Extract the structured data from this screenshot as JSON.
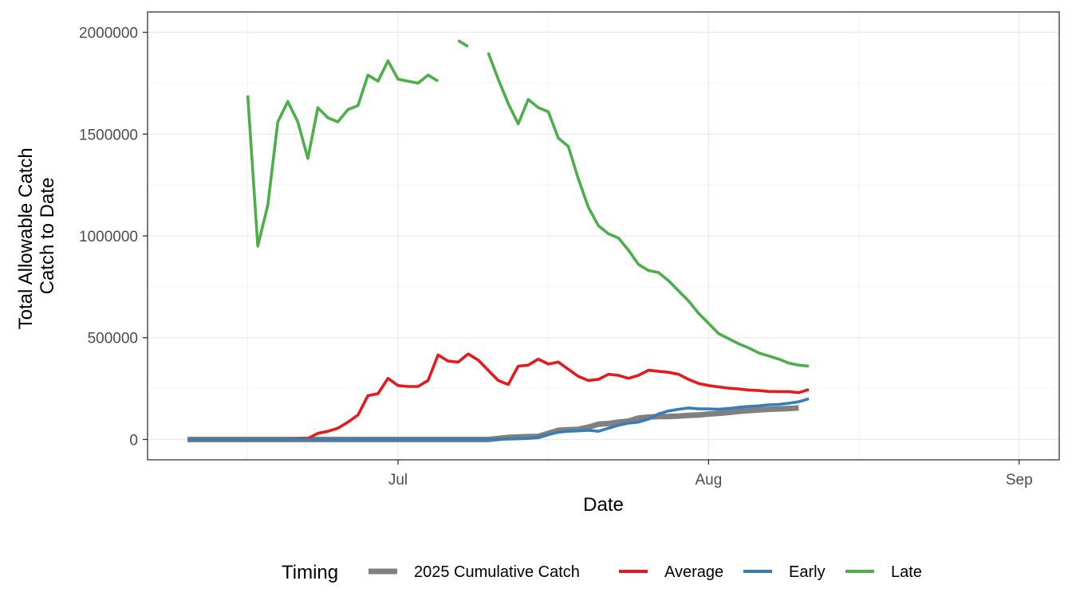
{
  "chart_data": {
    "type": "line",
    "xlabel": "Date",
    "ylabel_lines": [
      "Total Allowable Catch",
      "Catch to Date"
    ],
    "x_domain": [
      "2025-06-06",
      "2025-09-05"
    ],
    "ylim": [
      -100000,
      2100000
    ],
    "y_ticks": [
      {
        "value": 0,
        "label": "0"
      },
      {
        "value": 500000,
        "label": "500000"
      },
      {
        "value": 1000000,
        "label": "1000000"
      },
      {
        "value": 1500000,
        "label": "1500000"
      },
      {
        "value": 2000000,
        "label": "2000000"
      }
    ],
    "x_ticks": [
      {
        "date": "2025-07-01",
        "label": "Jul"
      },
      {
        "date": "2025-08-01",
        "label": "Aug"
      },
      {
        "date": "2025-09-01",
        "label": "Sep"
      }
    ],
    "grid": true,
    "legend": {
      "title": "Timing",
      "position": "bottom",
      "entries": [
        "2025 Cumulative Catch",
        "Average",
        "Early",
        "Late"
      ]
    },
    "series": [
      {
        "name": "2025 Cumulative Catch",
        "color": "#808080",
        "dates": [
          "2025-06-10",
          "2025-06-15",
          "2025-06-20",
          "2025-06-25",
          "2025-06-30",
          "2025-07-05",
          "2025-07-10",
          "2025-07-11",
          "2025-07-12",
          "2025-07-13",
          "2025-07-14",
          "2025-07-15",
          "2025-07-16",
          "2025-07-17",
          "2025-07-18",
          "2025-07-19",
          "2025-07-20",
          "2025-07-21",
          "2025-07-22",
          "2025-07-23",
          "2025-07-24",
          "2025-07-25",
          "2025-07-26",
          "2025-07-27",
          "2025-07-28",
          "2025-07-29",
          "2025-07-30",
          "2025-07-31",
          "2025-08-01",
          "2025-08-02",
          "2025-08-03",
          "2025-08-04",
          "2025-08-05",
          "2025-08-06",
          "2025-08-07",
          "2025-08-08",
          "2025-08-09",
          "2025-08-10"
        ],
        "values": [
          0,
          0,
          0,
          0,
          0,
          0,
          0,
          5000,
          10000,
          12000,
          14000,
          15000,
          30000,
          45000,
          48000,
          50000,
          60000,
          75000,
          78000,
          85000,
          90000,
          105000,
          110000,
          112000,
          113000,
          115000,
          118000,
          120000,
          125000,
          128000,
          132000,
          138000,
          142000,
          145000,
          148000,
          150000,
          152000,
          155000
        ]
      },
      {
        "name": "Average",
        "color": "#e41a1c",
        "dates": [
          "2025-06-10",
          "2025-06-20",
          "2025-06-22",
          "2025-06-23",
          "2025-06-24",
          "2025-06-25",
          "2025-06-26",
          "2025-06-27",
          "2025-06-28",
          "2025-06-29",
          "2025-06-30",
          "2025-07-01",
          "2025-07-02",
          "2025-07-03",
          "2025-07-04",
          "2025-07-05",
          "2025-07-06",
          "2025-07-07",
          "2025-07-08",
          "2025-07-09",
          "2025-07-10",
          "2025-07-11",
          "2025-07-12",
          "2025-07-13",
          "2025-07-14",
          "2025-07-15",
          "2025-07-16",
          "2025-07-17",
          "2025-07-18",
          "2025-07-19",
          "2025-07-20",
          "2025-07-21",
          "2025-07-22",
          "2025-07-23",
          "2025-07-24",
          "2025-07-25",
          "2025-07-26",
          "2025-07-27",
          "2025-07-28",
          "2025-07-29",
          "2025-07-30",
          "2025-07-31",
          "2025-08-01",
          "2025-08-02",
          "2025-08-03",
          "2025-08-04",
          "2025-08-05",
          "2025-08-06",
          "2025-08-07",
          "2025-08-08",
          "2025-08-09",
          "2025-08-10",
          "2025-08-11"
        ],
        "values": [
          0,
          0,
          5000,
          30000,
          40000,
          55000,
          85000,
          120000,
          215000,
          225000,
          300000,
          265000,
          260000,
          260000,
          290000,
          415000,
          385000,
          380000,
          420000,
          390000,
          340000,
          290000,
          270000,
          360000,
          365000,
          395000,
          370000,
          380000,
          345000,
          310000,
          290000,
          295000,
          320000,
          315000,
          300000,
          315000,
          340000,
          335000,
          330000,
          320000,
          295000,
          275000,
          265000,
          258000,
          252000,
          248000,
          243000,
          240000,
          236000,
          235000,
          235000,
          230000,
          245000
        ]
      },
      {
        "name": "Early",
        "color": "#377eb8",
        "dates": [
          "2025-06-10",
          "2025-06-30",
          "2025-07-08",
          "2025-07-10",
          "2025-07-12",
          "2025-07-14",
          "2025-07-15",
          "2025-07-16",
          "2025-07-17",
          "2025-07-18",
          "2025-07-19",
          "2025-07-20",
          "2025-07-21",
          "2025-07-22",
          "2025-07-23",
          "2025-07-24",
          "2025-07-25",
          "2025-07-26",
          "2025-07-27",
          "2025-07-28",
          "2025-07-29",
          "2025-07-30",
          "2025-07-31",
          "2025-08-01",
          "2025-08-02",
          "2025-08-03",
          "2025-08-04",
          "2025-08-05",
          "2025-08-06",
          "2025-08-07",
          "2025-08-08",
          "2025-08-09",
          "2025-08-10",
          "2025-08-11"
        ],
        "values": [
          0,
          0,
          0,
          0,
          2000,
          5000,
          10000,
          25000,
          35000,
          40000,
          42000,
          45000,
          40000,
          55000,
          70000,
          80000,
          85000,
          100000,
          125000,
          140000,
          148000,
          155000,
          150000,
          150000,
          148000,
          152000,
          158000,
          162000,
          165000,
          170000,
          172000,
          178000,
          185000,
          200000
        ]
      },
      {
        "name": "Late",
        "color": "#4daf4a",
        "segments": [
          {
            "dates": [
              "2025-06-16",
              "2025-06-17",
              "2025-06-18",
              "2025-06-19",
              "2025-06-20",
              "2025-06-21",
              "2025-06-22",
              "2025-06-23",
              "2025-06-24",
              "2025-06-25",
              "2025-06-26",
              "2025-06-27",
              "2025-06-28",
              "2025-06-29",
              "2025-06-30",
              "2025-07-01",
              "2025-07-02",
              "2025-07-03",
              "2025-07-04",
              "2025-07-05"
            ],
            "values": [
              1690000,
              950000,
              1150000,
              1560000,
              1660000,
              1560000,
              1380000,
              1630000,
              1580000,
              1560000,
              1620000,
              1640000,
              1790000,
              1760000,
              1860000,
              1770000,
              1760000,
              1750000,
              1790000,
              1760000
            ]
          },
          {
            "dates": [
              "2025-07-07",
              "2025-07-08"
            ],
            "values": [
              1960000,
              1930000
            ]
          },
          {
            "dates": [
              "2025-07-10",
              "2025-07-11",
              "2025-07-12",
              "2025-07-13",
              "2025-07-14",
              "2025-07-15",
              "2025-07-16",
              "2025-07-17",
              "2025-07-18",
              "2025-07-19",
              "2025-07-20",
              "2025-07-21",
              "2025-07-22",
              "2025-07-23",
              "2025-07-24",
              "2025-07-25",
              "2025-07-26",
              "2025-07-27",
              "2025-07-28",
              "2025-07-29",
              "2025-07-30",
              "2025-07-31",
              "2025-08-01",
              "2025-08-02",
              "2025-08-03",
              "2025-08-04",
              "2025-08-05",
              "2025-08-06",
              "2025-08-07",
              "2025-08-08",
              "2025-08-09",
              "2025-08-10",
              "2025-08-11"
            ],
            "values": [
              1900000,
              1770000,
              1650000,
              1550000,
              1670000,
              1630000,
              1610000,
              1480000,
              1440000,
              1280000,
              1140000,
              1050000,
              1010000,
              990000,
              930000,
              860000,
              830000,
              820000,
              780000,
              730000,
              680000,
              620000,
              570000,
              520000,
              495000,
              470000,
              450000,
              425000,
              410000,
              395000,
              375000,
              365000,
              360000
            ]
          }
        ]
      }
    ]
  }
}
